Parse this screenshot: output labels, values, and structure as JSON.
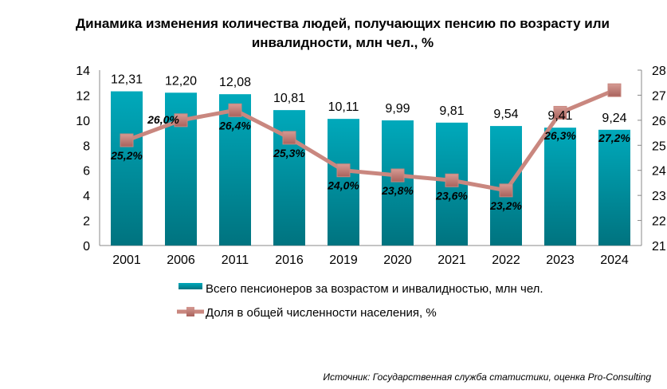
{
  "chart_data": {
    "type": "bar+line",
    "title": "Динамика изменения количества людей, получающих пенсию по возрасту или инвалидности, млн чел., %",
    "categories": [
      "2001",
      "2006",
      "2011",
      "2016",
      "2019",
      "2020",
      "2021",
      "2022",
      "2023",
      "2024"
    ],
    "series": [
      {
        "name": "Всего пенсионеров за возрастом и инвалидностью, млн чел.",
        "type": "bar",
        "axis": "left",
        "values": [
          12.31,
          12.2,
          12.08,
          10.81,
          10.11,
          9.99,
          9.81,
          9.54,
          9.41,
          9.24
        ],
        "labels": [
          "12,31",
          "12,20",
          "12,08",
          "10,81",
          "10,11",
          "9,99",
          "9,81",
          "9,54",
          "9,41",
          "9,24"
        ]
      },
      {
        "name": "Доля в общей численности населения, %",
        "type": "line",
        "axis": "right",
        "values": [
          25.2,
          26.0,
          26.4,
          25.3,
          24.0,
          23.8,
          23.6,
          23.2,
          26.3,
          27.2
        ],
        "labels": [
          "25,2%",
          "26,0%",
          "26,4%",
          "25,3%",
          "24,0%",
          "23,8%",
          "23,6%",
          "23,2%",
          "26,3%",
          "27,2%"
        ]
      }
    ],
    "y_left": {
      "range": [
        0,
        14
      ],
      "ticks": [
        0,
        2,
        4,
        6,
        8,
        10,
        12,
        14
      ]
    },
    "y_right": {
      "range": [
        21,
        28
      ],
      "ticks": [
        21,
        22,
        23,
        24,
        25,
        26,
        27,
        28
      ]
    },
    "legend": "bottom",
    "colors": {
      "bar_top": "#00a9bb",
      "bar_bottom": "#00737f",
      "line": "#c9877f",
      "marker": "#b96e68"
    }
  },
  "source": "Источник: Государственная служба статистики, оценка Pro-Consulting"
}
